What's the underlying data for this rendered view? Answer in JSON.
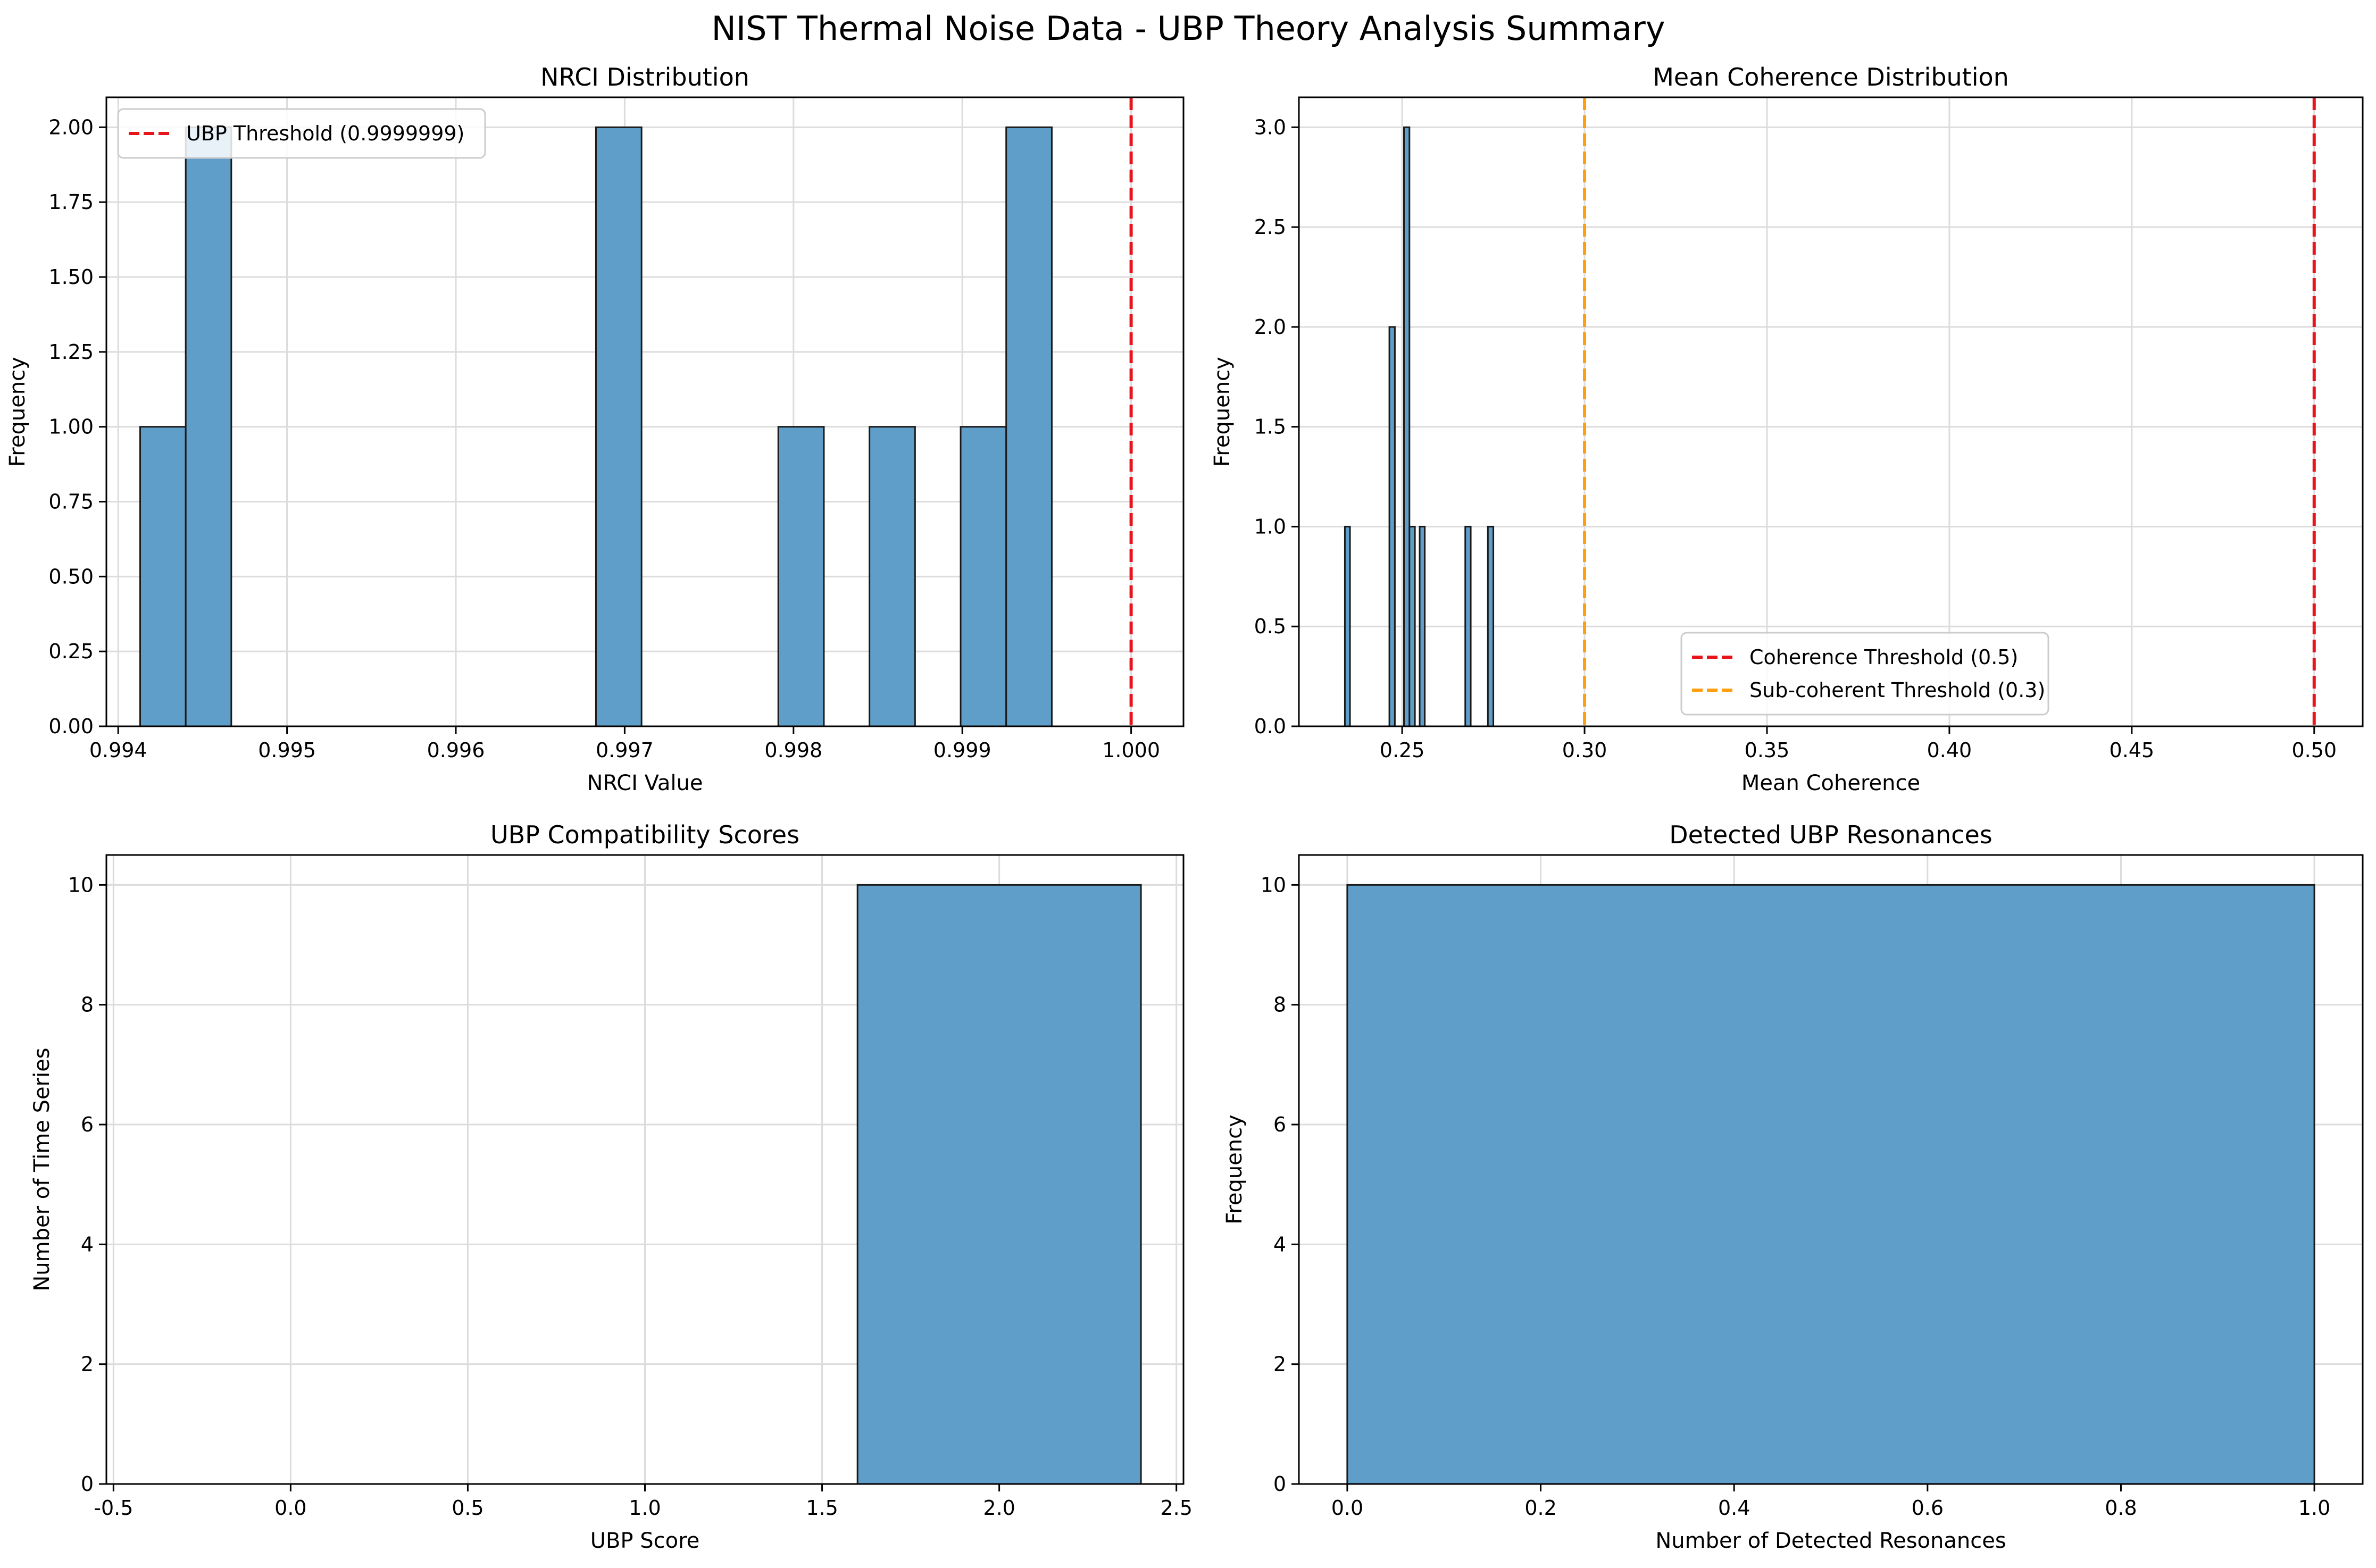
{
  "figure": {
    "title": "NIST Thermal Noise Data - UBP Theory Analysis Summary"
  },
  "colors": {
    "bar_fill": "#5f9ec9",
    "bar_edge": "#1a1a1a",
    "threshold_red": "#e8141c",
    "threshold_orange": "#ff9f10",
    "grid": "#dcdcdc"
  },
  "chart_data": [
    {
      "type": "bar",
      "title": "NRCI Distribution",
      "xlabel": "NRCI Value",
      "ylabel": "Frequency",
      "xlim": [
        0.99393,
        1.00031
      ],
      "ylim": [
        0,
        2.1
      ],
      "xticks": [
        0.994,
        0.995,
        0.996,
        0.997,
        0.998,
        0.999,
        1.0
      ],
      "xtick_labels": [
        "0.994",
        "0.995",
        "0.996",
        "0.997",
        "0.998",
        "0.999",
        "1.000"
      ],
      "yticks": [
        0,
        0.25,
        0.5,
        0.75,
        1.0,
        1.25,
        1.5,
        1.75,
        2.0
      ],
      "ytick_labels": [
        "0.00",
        "0.25",
        "0.50",
        "0.75",
        "1.00",
        "1.25",
        "1.50",
        "1.75",
        "2.00"
      ],
      "grid": true,
      "legend_position": "upper-left",
      "bins": [
        {
          "x0": 0.99413,
          "x1": 0.9944,
          "count": 1
        },
        {
          "x0": 0.9944,
          "x1": 0.99467,
          "count": 2
        },
        {
          "x0": 0.99683,
          "x1": 0.9971,
          "count": 2
        },
        {
          "x0": 0.99791,
          "x1": 0.99818,
          "count": 1
        },
        {
          "x0": 0.99845,
          "x1": 0.99872,
          "count": 1
        },
        {
          "x0": 0.99899,
          "x1": 0.99926,
          "count": 1
        },
        {
          "x0": 0.99926,
          "x1": 0.99953,
          "count": 2
        }
      ],
      "vlines": [
        {
          "x": 0.9999999,
          "color": "#e8141c",
          "label": "UBP Threshold (0.9999999)"
        }
      ]
    },
    {
      "type": "bar",
      "title": "Mean Coherence Distribution",
      "xlabel": "Mean Coherence",
      "ylabel": "Frequency",
      "xlim": [
        0.2217,
        0.5133
      ],
      "ylim": [
        0,
        3.15
      ],
      "xticks": [
        0.25,
        0.3,
        0.35,
        0.4,
        0.45,
        0.5
      ],
      "xtick_labels": [
        "0.25",
        "0.30",
        "0.35",
        "0.40",
        "0.45",
        "0.50"
      ],
      "yticks": [
        0,
        0.5,
        1.0,
        1.5,
        2.0,
        2.5,
        3.0
      ],
      "ytick_labels": [
        "0.0",
        "0.5",
        "1.0",
        "1.5",
        "2.0",
        "2.5",
        "3.0"
      ],
      "grid": true,
      "legend_position": "lower-center",
      "bins": [
        {
          "x0": 0.2343,
          "x1": 0.2357,
          "count": 1
        },
        {
          "x0": 0.2465,
          "x1": 0.248,
          "count": 2
        },
        {
          "x0": 0.2505,
          "x1": 0.252,
          "count": 3
        },
        {
          "x0": 0.252,
          "x1": 0.2535,
          "count": 1
        },
        {
          "x0": 0.2548,
          "x1": 0.2562,
          "count": 1
        },
        {
          "x0": 0.2673,
          "x1": 0.2688,
          "count": 1
        },
        {
          "x0": 0.2735,
          "x1": 0.275,
          "count": 1
        }
      ],
      "vlines": [
        {
          "x": 0.5,
          "color": "#e8141c",
          "label": "Coherence Threshold (0.5)"
        },
        {
          "x": 0.3,
          "color": "#ff9f10",
          "label": "Sub-coherent Threshold (0.3)"
        }
      ]
    },
    {
      "type": "bar",
      "title": "UBP Compatibility Scores",
      "xlabel": "UBP Score",
      "ylabel": "Number of Time Series",
      "xlim": [
        -0.52,
        2.52
      ],
      "ylim": [
        0,
        10.5
      ],
      "xticks": [
        -0.5,
        0,
        0.5,
        1.0,
        1.5,
        2.0,
        2.5
      ],
      "xtick_labels": [
        "-0.5",
        "0.0",
        "0.5",
        "1.0",
        "1.5",
        "2.0",
        "2.5"
      ],
      "yticks": [
        0,
        2,
        4,
        6,
        8,
        10
      ],
      "ytick_labels": [
        "0",
        "2",
        "4",
        "6",
        "8",
        "10"
      ],
      "grid": true,
      "bins": [
        {
          "x0": -0.4,
          "x1": 0.4,
          "count": 0
        },
        {
          "x0": 0.6,
          "x1": 1.4,
          "count": 0
        },
        {
          "x0": 1.6,
          "x1": 2.4,
          "count": 10
        }
      ],
      "vlines": []
    },
    {
      "type": "bar",
      "title": "Detected UBP Resonances",
      "xlabel": "Number of Detected Resonances",
      "ylabel": "Frequency",
      "xlim": [
        -0.05,
        1.05
      ],
      "ylim": [
        0,
        10.5
      ],
      "xticks": [
        0,
        0.2,
        0.4,
        0.6,
        0.8,
        1.0
      ],
      "xtick_labels": [
        "0.0",
        "0.2",
        "0.4",
        "0.6",
        "0.8",
        "1.0"
      ],
      "yticks": [
        0,
        2,
        4,
        6,
        8,
        10
      ],
      "ytick_labels": [
        "0",
        "2",
        "4",
        "6",
        "8",
        "10"
      ],
      "grid": true,
      "bins": [
        {
          "x0": 0.0,
          "x1": 1.0,
          "count": 10
        }
      ],
      "vlines": []
    }
  ]
}
